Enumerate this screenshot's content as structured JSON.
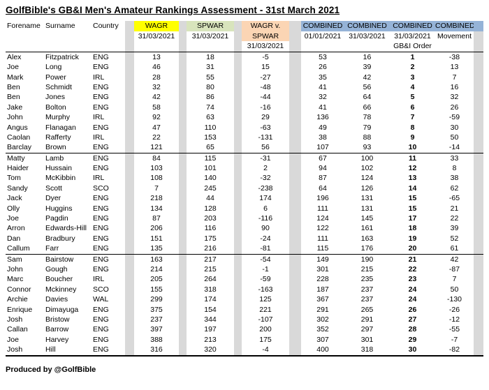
{
  "title": "GolfBible's GB&I Men's Amateur Rankings Assessment - 31st March 2021",
  "footer": "Produced by @GolfBible",
  "colors": {
    "wagr": "#FFFF00",
    "spwar": "#D8E4BC",
    "wagr_v": "#FBD5B4",
    "combined": "#95B3D7",
    "spacer": "#D9D9D9"
  },
  "table": {
    "headers": {
      "forename": "Forename",
      "surname": "Surname",
      "country": "Country",
      "wagr": {
        "line1": "WAGR",
        "line2": "31/03/2021"
      },
      "spwar": {
        "line1": "SPWAR",
        "line2": "31/03/2021"
      },
      "wagr_v": {
        "line1": "WAGR v.",
        "line2": "SPWAR",
        "line3": "31/03/2021"
      },
      "combined1": {
        "line1": "COMBINED",
        "line2": "01/01/2021"
      },
      "combined2": {
        "line1": "COMBINED",
        "line2": "31/03/2021"
      },
      "combined3": {
        "line1": "COMBINED",
        "line2": "31/03/2021",
        "line3": "GB&I Order"
      },
      "combined4": {
        "line1": "COMBINED",
        "line2": "Movement"
      }
    },
    "group_breaks_after": [
      10,
      20
    ],
    "rows": [
      [
        "Alex",
        "Fitzpatrick",
        "ENG",
        13,
        18,
        -5,
        53,
        16,
        1,
        -38
      ],
      [
        "Joe",
        "Long",
        "ENG",
        46,
        31,
        15,
        26,
        39,
        2,
        13
      ],
      [
        "Mark",
        "Power",
        "IRL",
        28,
        55,
        -27,
        35,
        42,
        3,
        7
      ],
      [
        "Ben",
        "Schmidt",
        "ENG",
        32,
        80,
        -48,
        41,
        56,
        4,
        16
      ],
      [
        "Ben",
        "Jones",
        "ENG",
        42,
        86,
        -44,
        32,
        64,
        5,
        32
      ],
      [
        "Jake",
        "Bolton",
        "ENG",
        58,
        74,
        -16,
        41,
        66,
        6,
        26
      ],
      [
        "John",
        "Murphy",
        "IRL",
        92,
        63,
        29,
        136,
        78,
        7,
        -59
      ],
      [
        "Angus",
        "Flanagan",
        "ENG",
        47,
        110,
        -63,
        49,
        79,
        8,
        30
      ],
      [
        "Caolan",
        "Rafferty",
        "IRL",
        22,
        153,
        -131,
        38,
        88,
        9,
        50
      ],
      [
        "Barclay",
        "Brown",
        "ENG",
        121,
        65,
        56,
        107,
        93,
        10,
        -14
      ],
      [
        "Matty",
        "Lamb",
        "ENG",
        84,
        115,
        -31,
        67,
        100,
        11,
        33
      ],
      [
        "Haider",
        "Hussain",
        "ENG",
        103,
        101,
        2,
        94,
        102,
        12,
        8
      ],
      [
        "Tom",
        "McKibbin",
        "IRL",
        108,
        140,
        -32,
        87,
        124,
        13,
        38
      ],
      [
        "Sandy",
        "Scott",
        "SCO",
        7,
        245,
        -238,
        64,
        126,
        14,
        62
      ],
      [
        "Jack",
        "Dyer",
        "ENG",
        218,
        44,
        174,
        196,
        131,
        15,
        -65
      ],
      [
        "Olly",
        "Huggins",
        "ENG",
        134,
        128,
        6,
        111,
        131,
        15,
        21
      ],
      [
        "Joe",
        "Pagdin",
        "ENG",
        87,
        203,
        -116,
        124,
        145,
        17,
        22
      ],
      [
        "Arron",
        "Edwards-Hill",
        "ENG",
        206,
        116,
        90,
        122,
        161,
        18,
        39
      ],
      [
        "Dan",
        "Bradbury",
        "ENG",
        151,
        175,
        -24,
        111,
        163,
        19,
        52
      ],
      [
        "Callum",
        "Farr",
        "ENG",
        135,
        216,
        -81,
        115,
        176,
        20,
        61
      ],
      [
        "Sam",
        "Bairstow",
        "ENG",
        163,
        217,
        -54,
        149,
        190,
        21,
        42
      ],
      [
        "John",
        "Gough",
        "ENG",
        214,
        215,
        -1,
        301,
        215,
        22,
        -87
      ],
      [
        "Marc",
        "Boucher",
        "IRL",
        205,
        264,
        -59,
        228,
        235,
        23,
        7
      ],
      [
        "Connor",
        "Mckinney",
        "SCO",
        155,
        318,
        -163,
        187,
        237,
        24,
        50
      ],
      [
        "Archie",
        "Davies",
        "WAL",
        299,
        174,
        125,
        367,
        237,
        24,
        -130
      ],
      [
        "Enrique",
        "Dimayuga",
        "ENG",
        375,
        154,
        221,
        291,
        265,
        26,
        -26
      ],
      [
        "Josh",
        "Bristow",
        "ENG",
        237,
        344,
        -107,
        302,
        291,
        27,
        -12
      ],
      [
        "Callan",
        "Barrow",
        "ENG",
        397,
        197,
        200,
        352,
        297,
        28,
        -55
      ],
      [
        "Joe",
        "Harvey",
        "ENG",
        388,
        213,
        175,
        307,
        301,
        29,
        -7
      ],
      [
        "Josh",
        "Hill",
        "ENG",
        316,
        320,
        -4,
        400,
        318,
        30,
        -82
      ]
    ]
  }
}
